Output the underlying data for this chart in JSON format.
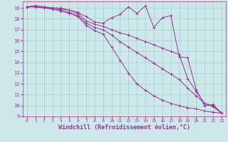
{
  "background_color": "#cce8e8",
  "grid_color": "#b0d0d0",
  "line_color": "#993399",
  "xlabel": "Windchill (Refroidissement éolien,°C)",
  "xlabel_fontsize": 6,
  "ylim": [
    9,
    19.6
  ],
  "xlim": [
    -0.5,
    23.5
  ],
  "yticks": [
    9,
    10,
    11,
    12,
    13,
    14,
    15,
    16,
    17,
    18,
    19
  ],
  "xticks": [
    0,
    1,
    2,
    3,
    4,
    5,
    6,
    7,
    8,
    9,
    10,
    11,
    12,
    13,
    14,
    15,
    16,
    17,
    18,
    19,
    20,
    21,
    22,
    23
  ],
  "series": [
    {
      "x": [
        0,
        1,
        2,
        3,
        4,
        5,
        6,
        7,
        8,
        9,
        10,
        11,
        12,
        13,
        14,
        15,
        16,
        17,
        18,
        19,
        20,
        21,
        22,
        23
      ],
      "y": [
        19.1,
        19.2,
        19.1,
        19.0,
        19.0,
        18.8,
        18.6,
        18.2,
        17.7,
        17.6,
        18.1,
        18.4,
        19.1,
        18.5,
        19.2,
        17.2,
        18.1,
        18.3,
        14.5,
        14.4,
        11.5,
        10.0,
        10.1,
        9.3
      ]
    },
    {
      "x": [
        0,
        1,
        2,
        3,
        4,
        5,
        6,
        7,
        8,
        9,
        10,
        11,
        12,
        13,
        14,
        15,
        16,
        17,
        18,
        19,
        20,
        21,
        22,
        23
      ],
      "y": [
        19.1,
        19.2,
        19.1,
        19.0,
        18.9,
        18.8,
        18.5,
        17.8,
        17.5,
        17.3,
        17.0,
        16.7,
        16.5,
        16.2,
        15.9,
        15.6,
        15.3,
        15.0,
        14.7,
        12.5,
        11.3,
        10.2,
        10.0,
        9.3
      ]
    },
    {
      "x": [
        0,
        1,
        2,
        3,
        4,
        5,
        6,
        7,
        8,
        9,
        10,
        11,
        12,
        13,
        14,
        15,
        16,
        17,
        18,
        19,
        20,
        21,
        22,
        23
      ],
      "y": [
        19.1,
        19.1,
        19.0,
        18.9,
        18.8,
        18.6,
        18.3,
        17.6,
        17.2,
        17.0,
        16.5,
        15.9,
        15.4,
        14.9,
        14.4,
        13.9,
        13.4,
        12.9,
        12.4,
        11.6,
        10.9,
        10.2,
        9.9,
        9.3
      ]
    },
    {
      "x": [
        0,
        1,
        2,
        3,
        4,
        5,
        6,
        7,
        8,
        9,
        10,
        11,
        12,
        13,
        14,
        15,
        16,
        17,
        18,
        19,
        20,
        21,
        22,
        23
      ],
      "y": [
        19.1,
        19.1,
        19.0,
        18.9,
        18.7,
        18.5,
        18.2,
        17.4,
        16.9,
        16.6,
        15.4,
        14.2,
        13.0,
        12.0,
        11.4,
        10.9,
        10.5,
        10.2,
        10.0,
        9.8,
        9.7,
        9.5,
        9.4,
        9.3
      ]
    }
  ]
}
